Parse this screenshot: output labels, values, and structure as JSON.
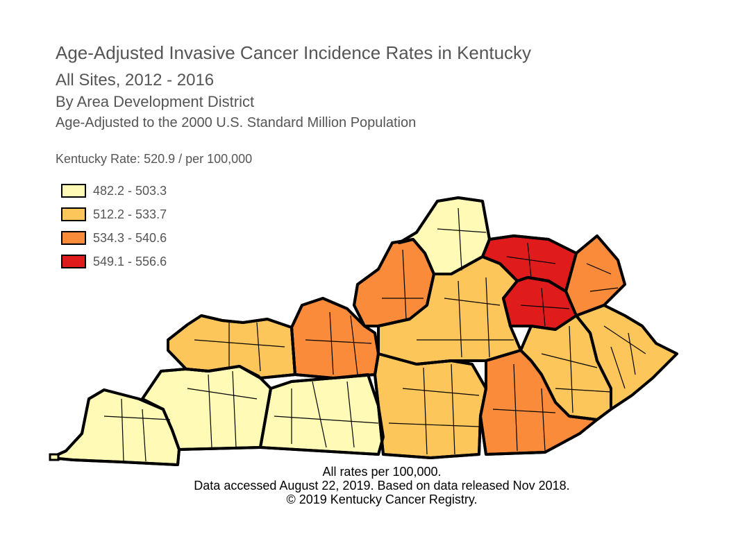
{
  "title": {
    "line1": "Age-Adjusted Invasive Cancer Incidence Rates in Kentucky",
    "line2": "All Sites, 2012 - 2016",
    "line3": "By Area Development District",
    "line4": "Age-Adjusted to the 2000 U.S. Standard Million Population"
  },
  "state_rate": "Kentucky Rate: 520.9 / per 100,000",
  "legend": [
    {
      "label": "482.2 - 503.3",
      "color": "#FFFAB5"
    },
    {
      "label": "512.2 - 533.7",
      "color": "#FDC65A"
    },
    {
      "label": "534.3 - 540.6",
      "color": "#F98B3A"
    },
    {
      "label": "549.1 - 556.6",
      "color": "#E01B1C"
    }
  ],
  "footer": {
    "line1": "All rates per 100,000.",
    "line2": "Data accessed August 22, 2019. Based on data released Nov 2018.",
    "line3": "© 2019 Kentucky Cancer Registry."
  },
  "map": {
    "region": "Kentucky",
    "unit": "Area Development District",
    "district_classes": [
      0,
      0,
      0,
      1,
      2,
      2,
      1,
      0,
      1,
      3,
      2,
      3,
      2,
      1,
      1
    ]
  }
}
